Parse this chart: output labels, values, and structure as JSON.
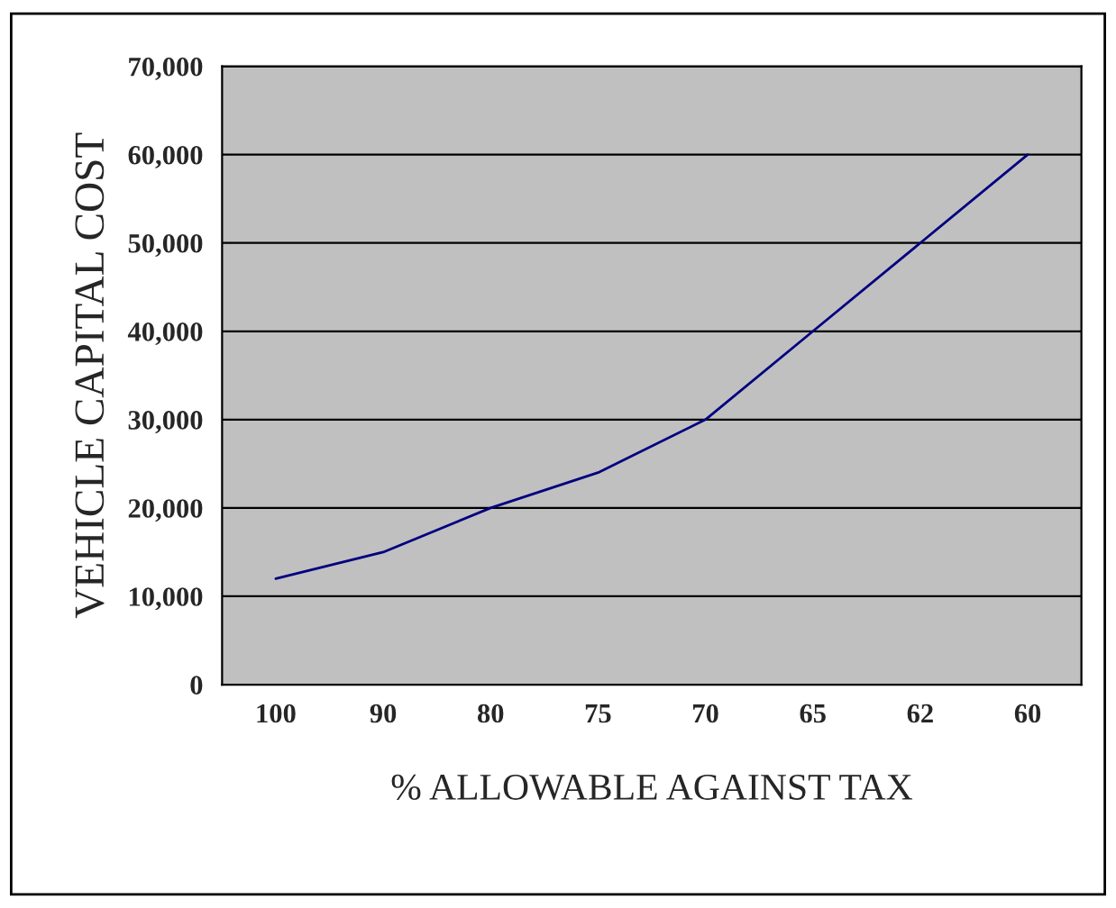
{
  "chart_data": {
    "type": "line",
    "categories": [
      "100",
      "90",
      "80",
      "75",
      "70",
      "65",
      "62",
      "60"
    ],
    "series": [
      {
        "color": "#000080",
        "values": [
          12000,
          15000,
          20000,
          24000,
          30000,
          40000,
          50000,
          60000
        ]
      }
    ],
    "xlabel": "% ALLOWABLE AGAINST TAX",
    "ylabel": "VEHICLE CAPITAL COST",
    "ylim": [
      0,
      70000
    ],
    "yticks": [
      0,
      {
        "value": 10000,
        "label": "10,000"
      },
      {
        "value": 20000,
        "label": "20,000"
      },
      {
        "value": 30000,
        "label": "30,000"
      },
      {
        "value": 40000,
        "label": "40,000"
      },
      {
        "value": 50000,
        "label": "50,000"
      },
      {
        "value": 60000,
        "label": "60,000"
      },
      {
        "value": 70000,
        "label": "70,000"
      }
    ],
    "grid": "y",
    "legend": false,
    "marker": "none",
    "line_style": "solid"
  }
}
